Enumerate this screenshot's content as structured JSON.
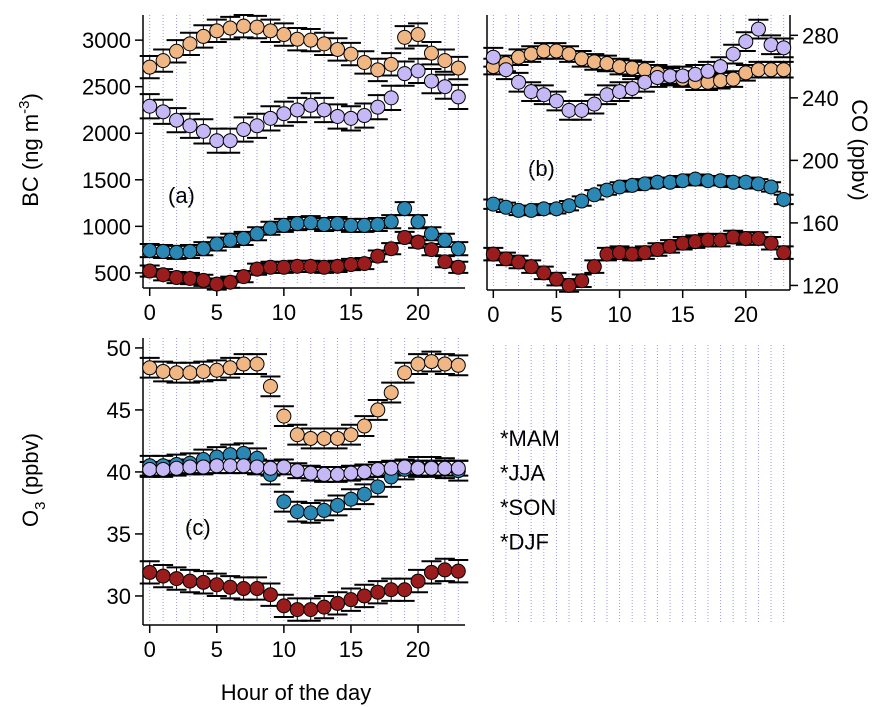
{
  "chart_data": [
    {
      "type": "scatter",
      "annotation": "(a)",
      "y_label": [
        "BC (ng m",
        "-3",
        ")"
      ],
      "x": [
        0,
        1,
        2,
        3,
        4,
        5,
        6,
        7,
        8,
        9,
        10,
        11,
        12,
        13,
        14,
        15,
        16,
        17,
        18,
        19,
        20,
        21,
        22,
        23
      ],
      "xlim": [
        -0.5,
        23.5
      ],
      "xticks": [
        0,
        5,
        10,
        15,
        20
      ],
      "ylim": [
        370,
        3270
      ],
      "yticks": [
        500,
        1000,
        1500,
        2000,
        2500,
        3000
      ],
      "grid": true,
      "series": [
        {
          "color": "#9b1c1c",
          "values": [
            520,
            480,
            450,
            440,
            420,
            380,
            400,
            460,
            540,
            560,
            560,
            570,
            570,
            560,
            570,
            590,
            600,
            680,
            760,
            880,
            830,
            750,
            620,
            560
          ],
          "errors": [
            60,
            60,
            60,
            60,
            60,
            60,
            60,
            60,
            60,
            60,
            60,
            60,
            60,
            60,
            60,
            60,
            60,
            60,
            60,
            60,
            60,
            60,
            60,
            60
          ]
        },
        {
          "color": "#f0b684",
          "values": [
            2710,
            2780,
            2880,
            2960,
            3040,
            3100,
            3130,
            3150,
            3140,
            3100,
            3060,
            3010,
            3000,
            2960,
            2900,
            2850,
            2760,
            2680,
            2740,
            3030,
            3060,
            2860,
            2780,
            2700
          ],
          "errors": [
            120,
            120,
            120,
            120,
            120,
            120,
            120,
            120,
            120,
            120,
            120,
            120,
            120,
            120,
            120,
            120,
            120,
            120,
            120,
            120,
            120,
            120,
            120,
            120
          ]
        },
        {
          "color": "#2b87b3",
          "values": [
            740,
            730,
            720,
            730,
            760,
            810,
            850,
            870,
            920,
            980,
            1010,
            1030,
            1040,
            1020,
            1030,
            1010,
            1010,
            1020,
            1050,
            1190,
            1050,
            920,
            850,
            760
          ],
          "errors": [
            70,
            70,
            70,
            70,
            70,
            70,
            70,
            70,
            70,
            70,
            70,
            70,
            70,
            70,
            70,
            70,
            70,
            70,
            70,
            70,
            70,
            70,
            70,
            70
          ]
        },
        {
          "color": "#c6b8f6",
          "values": [
            2290,
            2230,
            2140,
            2080,
            2020,
            1920,
            1920,
            2040,
            2080,
            2160,
            2210,
            2250,
            2300,
            2250,
            2180,
            2160,
            2190,
            2280,
            2380,
            2640,
            2670,
            2560,
            2500,
            2390
          ],
          "errors": [
            130,
            130,
            130,
            130,
            130,
            130,
            130,
            130,
            130,
            130,
            130,
            130,
            130,
            130,
            130,
            130,
            130,
            130,
            130,
            130,
            130,
            130,
            130,
            130
          ]
        }
      ]
    },
    {
      "type": "scatter",
      "annotation": "(b)",
      "y_label": "CO (ppbv)",
      "y_axis_side": "right",
      "x": [
        0,
        1,
        2,
        3,
        4,
        5,
        6,
        7,
        8,
        9,
        10,
        11,
        12,
        13,
        14,
        15,
        16,
        17,
        18,
        19,
        20,
        21,
        22,
        23
      ],
      "xlim": [
        -0.5,
        23.5
      ],
      "xticks": [
        0,
        5,
        10,
        15,
        20
      ],
      "ylim": [
        119,
        293
      ],
      "yticks": [
        120,
        160,
        200,
        240,
        280
      ],
      "grid": true,
      "series": [
        {
          "color": "#9b1c1c",
          "values": [
            140,
            137,
            135,
            132,
            128,
            124,
            120,
            123,
            132,
            140,
            141,
            140,
            141,
            143,
            145,
            147,
            148,
            149,
            149,
            151,
            150,
            150,
            147,
            141
          ],
          "errors": [
            4,
            4,
            4,
            4,
            4,
            4,
            4,
            4,
            4,
            4,
            4,
            4,
            4,
            4,
            4,
            4,
            4,
            4,
            4,
            4,
            4,
            4,
            4,
            4
          ]
        },
        {
          "color": "#f0b684",
          "values": [
            260,
            262,
            266,
            268,
            270,
            270,
            268,
            265,
            263,
            262,
            260,
            259,
            258,
            256,
            254,
            252,
            250,
            250,
            251,
            252,
            256,
            258,
            258,
            258
          ],
          "errors": [
            5,
            5,
            5,
            5,
            5,
            5,
            5,
            5,
            5,
            5,
            5,
            5,
            5,
            5,
            5,
            5,
            5,
            5,
            5,
            5,
            5,
            5,
            5,
            5
          ]
        },
        {
          "color": "#2b87b3",
          "values": [
            172,
            170,
            168,
            168,
            169,
            169,
            171,
            174,
            178,
            181,
            183,
            184,
            185,
            186,
            186,
            187,
            188,
            187,
            187,
            186,
            186,
            185,
            183,
            175
          ],
          "errors": [
            3,
            3,
            3,
            3,
            3,
            3,
            3,
            3,
            3,
            3,
            3,
            3,
            3,
            3,
            3,
            3,
            3,
            3,
            3,
            3,
            3,
            3,
            3,
            3
          ]
        },
        {
          "color": "#c6b8f6",
          "values": [
            266,
            258,
            250,
            244,
            242,
            238,
            232,
            232,
            236,
            242,
            244,
            246,
            250,
            253,
            254,
            254,
            255,
            257,
            260,
            268,
            276,
            284,
            274,
            272
          ],
          "errors": [
            6,
            6,
            6,
            6,
            6,
            6,
            6,
            6,
            6,
            6,
            6,
            6,
            6,
            6,
            6,
            6,
            6,
            6,
            6,
            6,
            6,
            6,
            6,
            6
          ]
        }
      ]
    },
    {
      "type": "scatter",
      "annotation": "(c)",
      "y_label": [
        "O",
        "3",
        " (ppbv)"
      ],
      "x_label": "Hour of the day",
      "legend": "outside-right",
      "x": [
        0,
        1,
        2,
        3,
        4,
        5,
        6,
        7,
        8,
        9,
        10,
        11,
        12,
        13,
        14,
        15,
        16,
        17,
        18,
        19,
        20,
        21,
        22,
        23
      ],
      "xlim": [
        -0.5,
        23.5
      ],
      "xticks": [
        0,
        5,
        10,
        15,
        20
      ],
      "ylim": [
        27.9,
        50.8
      ],
      "yticks": [
        30,
        35,
        40,
        45,
        50
      ],
      "grid": true,
      "series": [
        {
          "name": "*MAM",
          "color": "#9b1c1c",
          "values": [
            31.9,
            31.6,
            31.4,
            31.2,
            31.1,
            30.9,
            30.7,
            30.6,
            30.6,
            30.1,
            29.2,
            28.9,
            28.9,
            29.1,
            29.4,
            29.7,
            30.0,
            30.3,
            30.5,
            30.5,
            31.2,
            31.9,
            32.1,
            32.0
          ],
          "errors": [
            0.9,
            0.9,
            0.9,
            0.9,
            0.9,
            0.9,
            0.9,
            0.9,
            0.9,
            0.9,
            0.9,
            0.9,
            0.9,
            0.9,
            0.9,
            0.9,
            0.9,
            0.9,
            0.9,
            0.9,
            0.9,
            0.9,
            0.9,
            0.9
          ]
        },
        {
          "name": "*JJA",
          "color": "#f0b684",
          "values": [
            48.4,
            48.1,
            48.0,
            48.0,
            48.1,
            48.2,
            48.4,
            48.7,
            48.7,
            46.9,
            44.5,
            43.0,
            42.7,
            42.7,
            42.7,
            43.0,
            43.7,
            45.0,
            46.4,
            48.0,
            48.7,
            48.9,
            48.7,
            48.6
          ],
          "errors": [
            0.8,
            0.8,
            0.8,
            0.8,
            0.8,
            0.8,
            0.8,
            0.8,
            0.8,
            0.8,
            0.8,
            0.8,
            0.8,
            0.8,
            0.8,
            0.8,
            0.8,
            0.8,
            0.8,
            0.8,
            0.8,
            0.8,
            0.8,
            0.8
          ]
        },
        {
          "name": "*SON",
          "color": "#2b87b3",
          "values": [
            40.5,
            40.5,
            40.6,
            40.7,
            41.0,
            41.2,
            41.4,
            41.5,
            41.1,
            39.8,
            37.6,
            36.8,
            36.7,
            36.9,
            37.3,
            37.8,
            38.2,
            38.8,
            39.6,
            40.2,
            40.4,
            40.4,
            40.3,
            40.1
          ],
          "errors": [
            0.8,
            0.8,
            0.8,
            0.8,
            0.8,
            0.8,
            0.8,
            0.8,
            0.8,
            0.8,
            0.8,
            0.8,
            0.8,
            0.8,
            0.8,
            0.8,
            0.8,
            0.8,
            0.8,
            0.8,
            0.8,
            0.8,
            0.8,
            0.8
          ]
        },
        {
          "name": "*DJF",
          "color": "#c6b8f6",
          "values": [
            40.2,
            40.2,
            40.3,
            40.4,
            40.4,
            40.5,
            40.5,
            40.5,
            40.4,
            40.3,
            40.4,
            40.1,
            39.9,
            39.8,
            39.8,
            39.9,
            40.0,
            40.2,
            40.3,
            40.4,
            40.3,
            40.3,
            40.3,
            40.3
          ],
          "errors": [
            0.6,
            0.6,
            0.6,
            0.6,
            0.6,
            0.6,
            0.6,
            0.6,
            0.6,
            0.6,
            0.6,
            0.6,
            0.6,
            0.6,
            0.6,
            0.6,
            0.6,
            0.6,
            0.6,
            0.6,
            0.6,
            0.6,
            0.6,
            0.6
          ]
        }
      ]
    }
  ]
}
